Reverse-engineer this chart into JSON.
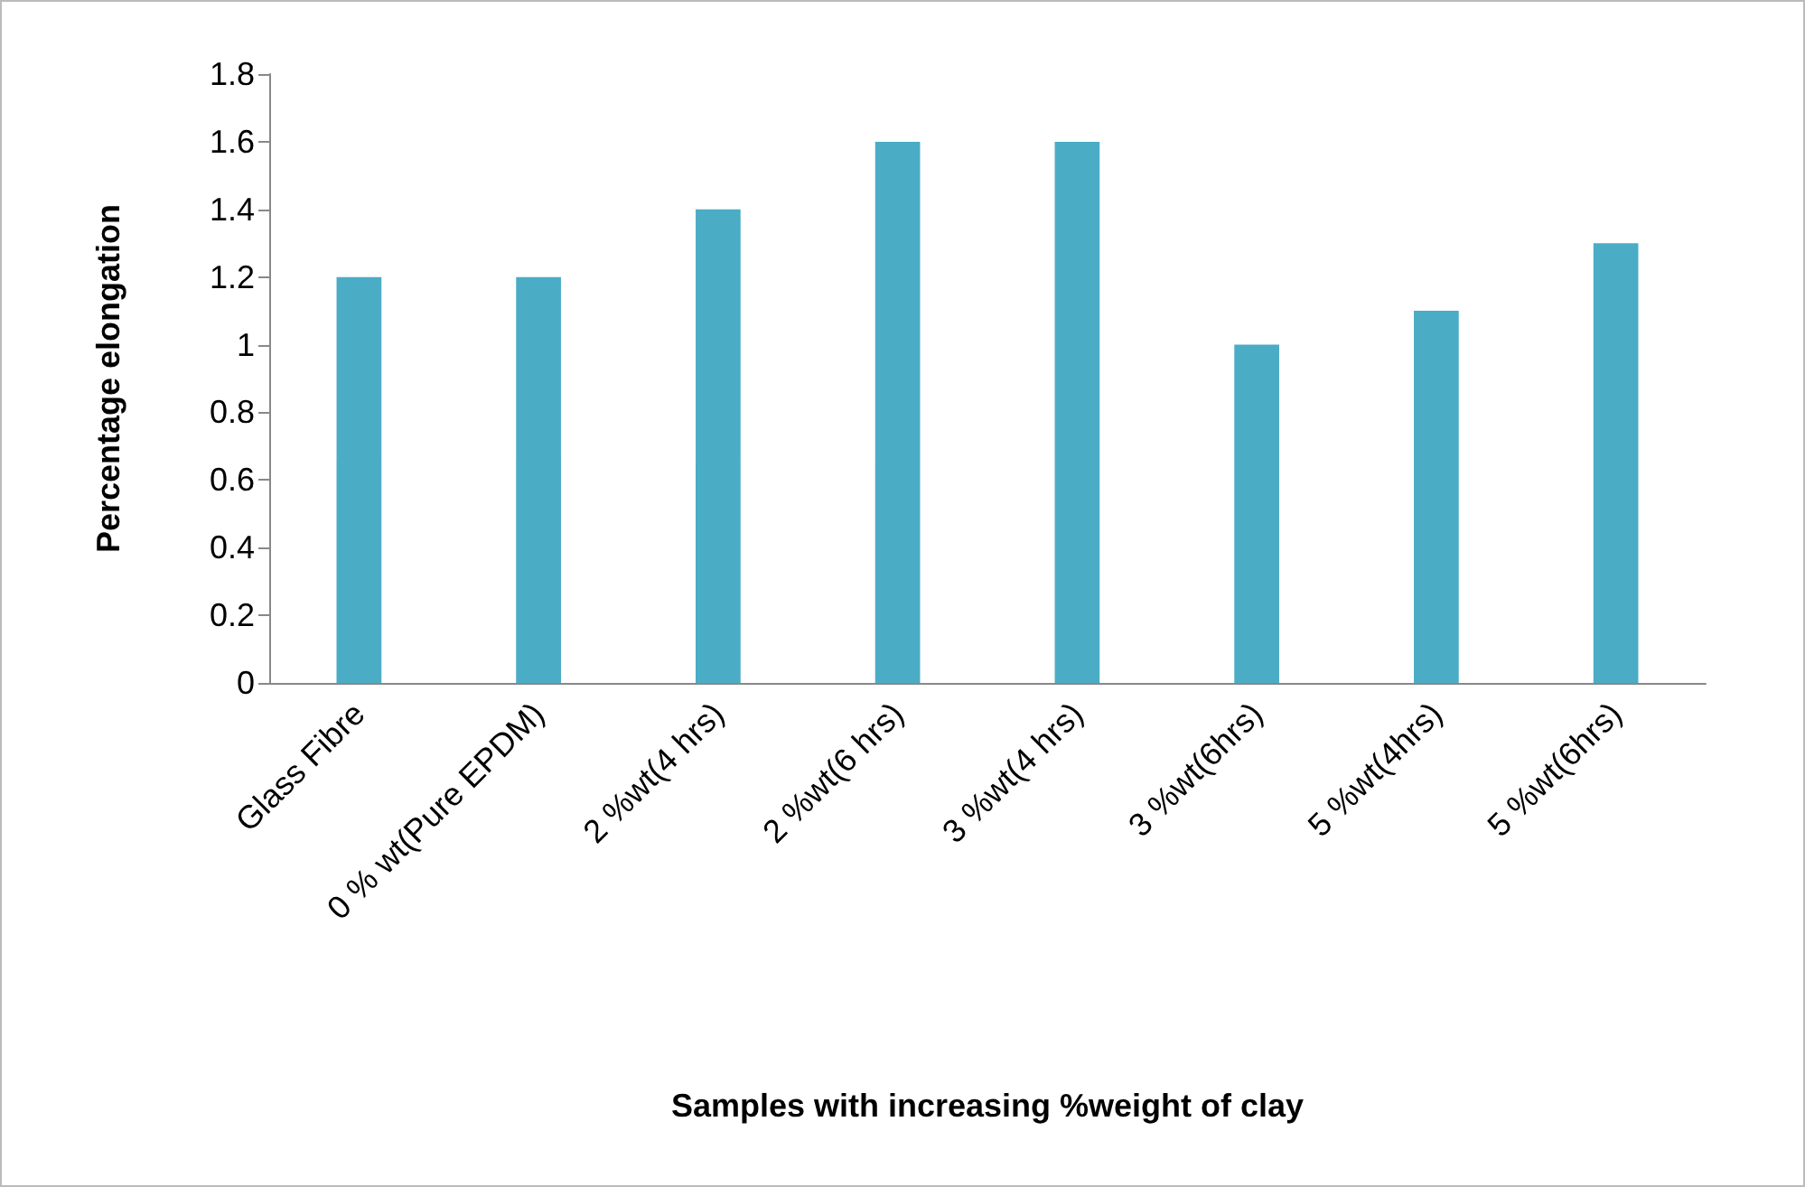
{
  "chart_data": {
    "type": "bar",
    "xlabel": "Samples with increasing %weight of clay",
    "ylabel": "Percentage elongation",
    "categories": [
      "Glass Fibre",
      "0 % wt(Pure EPDM)",
      "2 %wt(4 hrs)",
      "2 %wt(6 hrs)",
      "3 %wt(4 hrs)",
      "3 %wt(6hrs)",
      "5 %wt(4hrs)",
      "5 %wt(6hrs)"
    ],
    "values": [
      1.2,
      1.2,
      1.4,
      1.6,
      1.6,
      1.0,
      1.1,
      1.3
    ],
    "color": "#4bacc6",
    "ylim": [
      0,
      1.8
    ],
    "yticks": [
      0,
      0.2,
      0.4,
      0.6,
      0.8,
      1,
      1.2,
      1.4,
      1.6,
      1.8
    ],
    "grid": false
  }
}
